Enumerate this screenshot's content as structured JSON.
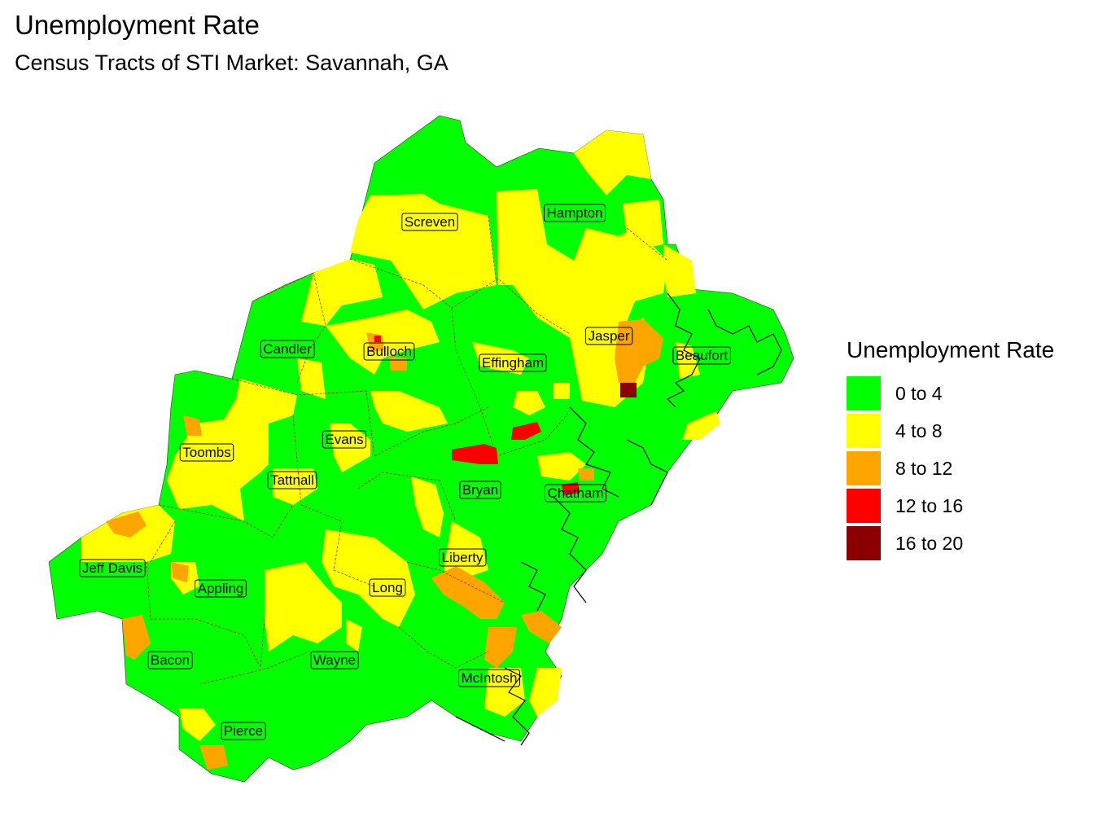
{
  "title": "Unemployment Rate",
  "subtitle": "Census Tracts of STI Market: Savannah, GA",
  "legend": {
    "title": "Unemployment Rate",
    "items": [
      {
        "label": "0 to 4",
        "color": "#00ff00"
      },
      {
        "label": "4 to 8",
        "color": "#ffff00"
      },
      {
        "label": "8 to 12",
        "color": "#ffa500"
      },
      {
        "label": "12 to 16",
        "color": "#ff0000"
      },
      {
        "label": "16 to 20",
        "color": "#8b0000"
      }
    ]
  },
  "counties": [
    {
      "name": "Screven",
      "class": "4 to 8"
    },
    {
      "name": "Hampton",
      "class": "4 to 8"
    },
    {
      "name": "Jasper",
      "class": "4 to 8"
    },
    {
      "name": "Beaufort",
      "class": "0 to 4"
    },
    {
      "name": "Candler",
      "class": "0 to 4"
    },
    {
      "name": "Bulloch",
      "class": "0 to 4"
    },
    {
      "name": "Effingham",
      "class": "0 to 4"
    },
    {
      "name": "Evans",
      "class": "4 to 8"
    },
    {
      "name": "Toombs",
      "class": "4 to 8"
    },
    {
      "name": "Tattnall",
      "class": "4 to 8"
    },
    {
      "name": "Bryan",
      "class": "0 to 4"
    },
    {
      "name": "Chatham",
      "class": "0 to 4"
    },
    {
      "name": "Jeff Davis",
      "class": "0 to 4"
    },
    {
      "name": "Appling",
      "class": "0 to 4"
    },
    {
      "name": "Liberty",
      "class": "0 to 4"
    },
    {
      "name": "Long",
      "class": "4 to 8"
    },
    {
      "name": "Bacon",
      "class": "0 to 4"
    },
    {
      "name": "Wayne",
      "class": "0 to 4"
    },
    {
      "name": "McIntosh",
      "class": "0 to 4"
    },
    {
      "name": "Pierce",
      "class": "0 to 4"
    }
  ]
}
